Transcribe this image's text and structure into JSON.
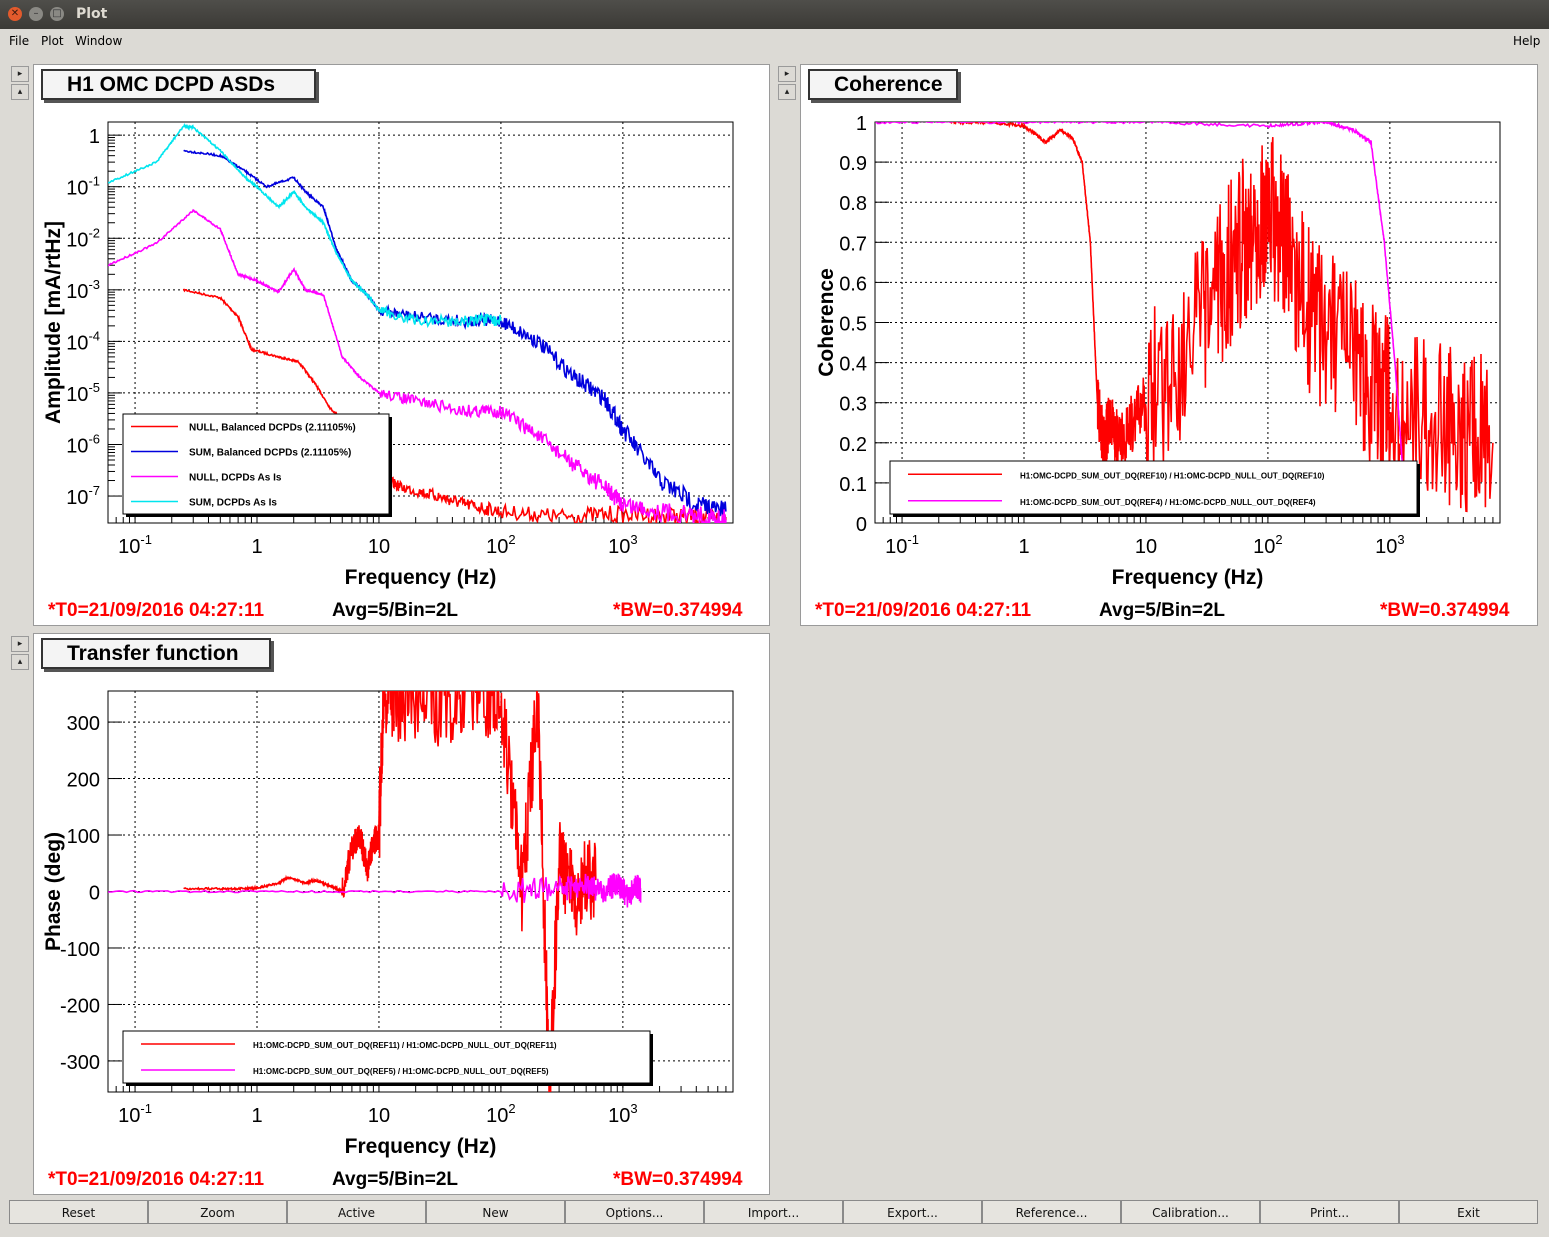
{
  "window": {
    "title": "Plot"
  },
  "menu": {
    "file": "File",
    "plot": "Plot",
    "window": "Window",
    "help": "Help"
  },
  "panels": {
    "asd": {
      "title": "H1 OMC DCPD ASDs",
      "ylabel": "Amplitude [mA/rtHz]",
      "xlabel": "Frequency (Hz)",
      "legend": [
        "NULL, Balanced DCPDs (2.11105%)",
        "SUM, Balanced DCPDs (2.11105%)",
        "NULL, DCPDs As Is",
        "SUM, DCPDs As Is"
      ],
      "t0": "*T0=21/09/2016 04:27:11",
      "avg": "Avg=5/Bin=2L",
      "bw": "*BW=0.374994"
    },
    "coherence": {
      "title": "Coherence",
      "ylabel": "Coherence",
      "xlabel": "Frequency (Hz)",
      "legend": [
        "H1:OMC-DCPD_SUM_OUT_DQ(REF10) / H1:OMC-DCPD_NULL_OUT_DQ(REF10)",
        "H1:OMC-DCPD_SUM_OUT_DQ(REF4) / H1:OMC-DCPD_NULL_OUT_DQ(REF4)"
      ],
      "t0": "*T0=21/09/2016 04:27:11",
      "avg": "Avg=5/Bin=2L",
      "bw": "*BW=0.374994"
    },
    "tf": {
      "title": "Transfer function",
      "ylabel": "Phase (deg)",
      "xlabel": "Frequency (Hz)",
      "legend": [
        "H1:OMC-DCPD_SUM_OUT_DQ(REF11) / H1:OMC-DCPD_NULL_OUT_DQ(REF11)",
        "H1:OMC-DCPD_SUM_OUT_DQ(REF5) / H1:OMC-DCPD_NULL_OUT_DQ(REF5)"
      ],
      "t0": "*T0=21/09/2016 04:27:11",
      "avg": "Avg=5/Bin=2L",
      "bw": "*BW=0.374994"
    }
  },
  "buttons": [
    "Reset",
    "Zoom",
    "Active",
    "New",
    "Options...",
    "Import...",
    "Export...",
    "Reference...",
    "Calibration...",
    "Print...",
    "Exit"
  ],
  "chart_data": [
    {
      "type": "line",
      "title": "H1 OMC DCPD ASDs",
      "xlabel": "Frequency (Hz)",
      "ylabel": "Amplitude [mA/rtHz]",
      "xscale": "log",
      "yscale": "log",
      "xlim": [
        0.06,
        8000
      ],
      "ylim": [
        3e-08,
        1.8
      ],
      "x_ticks": [
        "10^-1",
        "1",
        "10",
        "10^2",
        "10^3"
      ],
      "y_ticks": [
        "1",
        "10^-1",
        "10^-2",
        "10^-3",
        "10^-4",
        "10^-5",
        "10^-6",
        "10^-7"
      ],
      "grid": true,
      "legend_position": "bottom-left",
      "colors": [
        "#ff0000",
        "#0000dd",
        "#ff00ff",
        "#00e5ee"
      ],
      "series": [
        {
          "name": "NULL, Balanced DCPDs (2.11105%)",
          "x": [
            0.25,
            0.5,
            0.7,
            0.9,
            1.5,
            2.2,
            3,
            4,
            6,
            8,
            10,
            15,
            30,
            50,
            100,
            300,
            1000,
            3000,
            7000
          ],
          "y": [
            0.001,
            0.0007,
            0.0003,
            7e-05,
            5e-05,
            4e-05,
            1.5e-05,
            5e-06,
            2e-06,
            7e-07,
            2.5e-07,
            1.5e-07,
            1e-07,
            7e-08,
            5e-08,
            4e-08,
            4.5e-08,
            4e-08,
            3.5e-08
          ]
        },
        {
          "name": "SUM, Balanced DCPDs (2.11105%)",
          "x": [
            0.25,
            0.5,
            0.8,
            1.2,
            2,
            2.5,
            3.5,
            4.5,
            6,
            8,
            10,
            20,
            50,
            100,
            200,
            400,
            700,
            1000,
            2000,
            4000,
            7000
          ],
          "y": [
            0.5,
            0.4,
            0.2,
            0.1,
            0.15,
            0.08,
            0.04,
            0.006,
            0.0015,
            0.0008,
            0.0004,
            0.0003,
            0.00025,
            0.00025,
            0.0001,
            2e-05,
            8e-06,
            2e-06,
            2e-07,
            7e-08,
            5e-08
          ]
        },
        {
          "name": "NULL, DCPDs As Is",
          "x": [
            0.06,
            0.15,
            0.3,
            0.5,
            0.7,
            1,
            1.5,
            2,
            2.5,
            3.5,
            5,
            7,
            10,
            20,
            50,
            100,
            200,
            400,
            700,
            1000,
            2000,
            5000,
            7000
          ],
          "y": [
            0.003,
            0.008,
            0.035,
            0.015,
            0.002,
            0.0015,
            0.0009,
            0.0025,
            0.001,
            0.0008,
            5e-05,
            2e-05,
            1e-05,
            7e-06,
            4.5e-06,
            4.5e-06,
            1.5e-06,
            4e-07,
            1.5e-07,
            7e-08,
            5e-08,
            4e-08,
            3.5e-08
          ]
        },
        {
          "name": "SUM, DCPDs As Is",
          "x": [
            0.06,
            0.15,
            0.25,
            0.3,
            0.5,
            0.8,
            1,
            1.5,
            2,
            2.5,
            3.5,
            4.5,
            6,
            8,
            10,
            20,
            50,
            100
          ],
          "y": [
            0.12,
            0.3,
            1.5,
            1.4,
            0.5,
            0.15,
            0.1,
            0.04,
            0.08,
            0.04,
            0.02,
            0.005,
            0.0015,
            0.0008,
            0.0004,
            0.00025,
            0.00025,
            0.00025
          ]
        }
      ]
    },
    {
      "type": "line",
      "title": "Coherence",
      "xlabel": "Frequency (Hz)",
      "ylabel": "Coherence",
      "xscale": "log",
      "xlim": [
        0.06,
        8000
      ],
      "ylim": [
        0,
        1
      ],
      "x_ticks": [
        "10^-1",
        "1",
        "10",
        "10^2",
        "10^3"
      ],
      "y_ticks": [
        "0",
        "0.1",
        "0.2",
        "0.3",
        "0.4",
        "0.5",
        "0.6",
        "0.7",
        "0.8",
        "0.9",
        "1"
      ],
      "grid": true,
      "legend_position": "bottom-right",
      "colors": [
        "#ff0000",
        "#ff00ff"
      ],
      "series": [
        {
          "name": "H1:OMC-DCPD_SUM_OUT_DQ(REF10) / H1:OMC-DCPD_NULL_OUT_DQ(REF10)",
          "x": [
            0.25,
            0.5,
            1,
            1.5,
            2,
            2.5,
            3,
            3.5,
            4,
            4.5,
            5,
            6,
            10,
            30,
            60,
            100,
            200,
            500,
            1000,
            3000,
            7000
          ],
          "y": [
            1,
            1,
            0.99,
            0.95,
            0.98,
            0.96,
            0.9,
            0.7,
            0.3,
            0.2,
            0.25,
            0.2,
            0.3,
            0.5,
            0.7,
            0.8,
            0.55,
            0.4,
            0.3,
            0.25,
            0.2
          ]
        },
        {
          "name": "H1:OMC-DCPD_SUM_OUT_DQ(REF4) / H1:OMC-DCPD_NULL_OUT_DQ(REF4)",
          "x": [
            0.06,
            1,
            10,
            100,
            300,
            500,
            700,
            900,
            1100,
            1300,
            1600
          ],
          "y": [
            1,
            1,
            1,
            0.99,
            1,
            0.98,
            0.95,
            0.7,
            0.4,
            0.1,
            0.02
          ]
        }
      ]
    },
    {
      "type": "line",
      "title": "Transfer function",
      "xlabel": "Frequency (Hz)",
      "ylabel": "Phase (deg)",
      "xscale": "log",
      "xlim": [
        0.06,
        8000
      ],
      "ylim": [
        -355,
        355
      ],
      "x_ticks": [
        "10^-1",
        "1",
        "10",
        "10^2",
        "10^3"
      ],
      "y_ticks": [
        "300",
        "200",
        "100",
        "0",
        "-100",
        "-200",
        "-300"
      ],
      "grid": true,
      "legend_position": "bottom-left",
      "colors": [
        "#ff0000",
        "#ff00ff"
      ],
      "series": [
        {
          "name": "H1:OMC-DCPD_SUM_OUT_DQ(REF11) / H1:OMC-DCPD_NULL_OUT_DQ(REF11)",
          "x": [
            0.25,
            0.5,
            0.8,
            1,
            1.5,
            1.8,
            2.5,
            3,
            4,
            5,
            6,
            7,
            8,
            9,
            10,
            11,
            15,
            30,
            60,
            100,
            150,
            200,
            250,
            300,
            400,
            600
          ],
          "y": [
            5,
            5,
            5,
            6,
            15,
            25,
            15,
            20,
            10,
            0,
            80,
            100,
            40,
            90,
            100,
            355,
            340,
            330,
            350,
            340,
            0,
            355,
            -355,
            50,
            0,
            20
          ]
        },
        {
          "name": "H1:OMC-DCPD_SUM_OUT_DQ(REF5) / H1:OMC-DCPD_NULL_OUT_DQ(REF5)",
          "x": [
            0.06,
            1,
            10,
            100,
            300,
            500,
            700,
            900,
            1100,
            1300,
            1400
          ],
          "y": [
            0,
            0,
            0,
            0,
            5,
            10,
            0,
            15,
            -10,
            10,
            0
          ]
        }
      ]
    }
  ]
}
